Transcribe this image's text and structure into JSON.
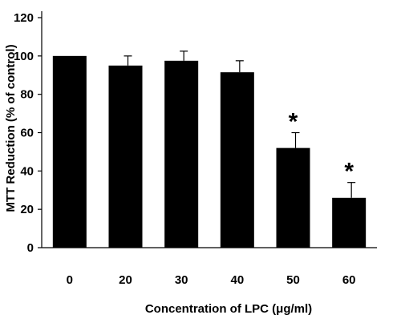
{
  "chart_data": {
    "type": "bar",
    "categories": [
      "0",
      "20",
      "30",
      "40",
      "50",
      "60"
    ],
    "values": [
      100,
      95,
      97.5,
      91.5,
      52,
      26
    ],
    "errors": [
      0,
      5,
      5,
      6,
      8,
      8
    ],
    "significance": [
      "",
      "",
      "",
      "",
      "*",
      "*"
    ],
    "xlabel": "Concentration of LPC (μg/ml)",
    "ylabel": "MTT Reduction (% of control)",
    "ylim": [
      0,
      120
    ],
    "yticks": [
      0,
      20,
      40,
      60,
      80,
      100,
      120
    ],
    "grid": false,
    "bar_color": "#000000"
  }
}
